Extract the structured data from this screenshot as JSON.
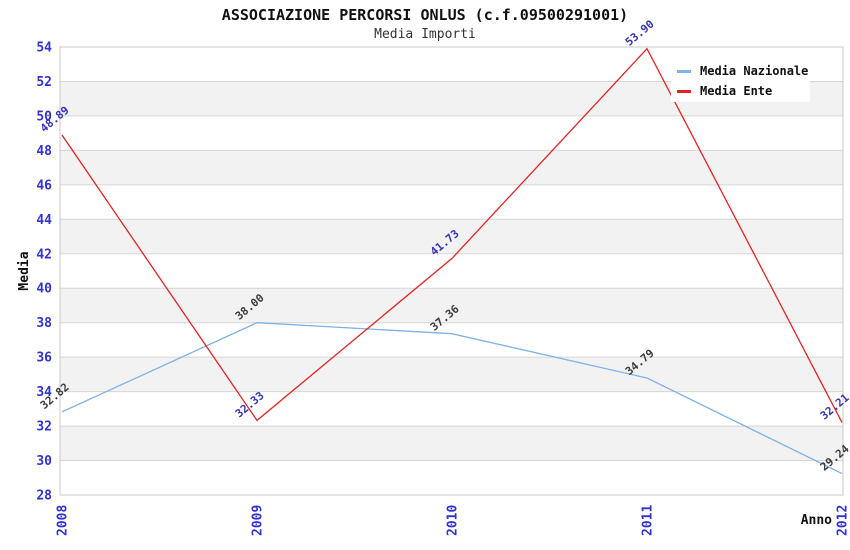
{
  "header": {
    "title": "ASSOCIAZIONE PERCORSI ONLUS (c.f.09500291001)",
    "subtitle": "Media Importi"
  },
  "chart_data": {
    "type": "line",
    "title": "ASSOCIAZIONE PERCORSI ONLUS (c.f.09500291001)",
    "subtitle": "Media Importi",
    "xlabel": "Anno",
    "ylabel": "Media",
    "categories": [
      "2008",
      "2009",
      "2010",
      "2011",
      "2012"
    ],
    "ylim": [
      28,
      54
    ],
    "ytick_step": 2,
    "grid": "horizontal-bands-alternating",
    "legend_position": "top-right",
    "series": [
      {
        "name": "Media Nazionale",
        "color": "#7fb2e6",
        "label_color": "#3c3c3c",
        "values": [
          32.82,
          38.0,
          37.36,
          34.79,
          29.24
        ],
        "labels": [
          "32.82",
          "38.00",
          "37.36",
          "34.79",
          "29.24"
        ]
      },
      {
        "name": "Media Ente",
        "color": "#e32222",
        "label_color": "#3535b2",
        "values": [
          48.89,
          32.33,
          41.73,
          53.9,
          32.21
        ],
        "labels": [
          "48.89",
          "32.33",
          "41.73",
          "53.90",
          "32.21"
        ]
      }
    ],
    "colors": {
      "tick_label": "#3232cd",
      "band_fill": "#f2f2f2",
      "grid_line": "#d6d6d6",
      "plot_border": "#c8c8c8",
      "axis_title": "#111111"
    }
  }
}
